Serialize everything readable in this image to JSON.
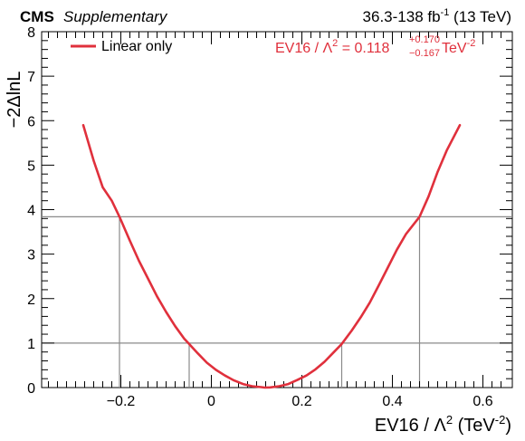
{
  "header": {
    "experiment": "CMS",
    "label": "Supplementary",
    "lumi": "36.3-138 fb",
    "lumi_sup": "-1",
    "energy": " (13 TeV)"
  },
  "colors": {
    "curve": "#e0303c",
    "threshold_lines": "#8a8a8a",
    "axes": "#000000"
  },
  "chart_data": {
    "type": "line",
    "xlabel_main": "EV16 / Λ",
    "xlabel_sup": "2",
    "xlabel_unit": " (TeV",
    "xlabel_unit_sup": "-2",
    "xlabel_close": ")",
    "ylabel": "−2ΔlnL",
    "xlim": [
      -0.375,
      0.665
    ],
    "ylim": [
      0,
      8
    ],
    "xticks": [
      -0.2,
      0,
      0.2,
      0.4,
      0.6
    ],
    "xtick_labels": [
      "−0.2",
      "0",
      "0.2",
      "0.4",
      "0.6"
    ],
    "yticks": [
      0,
      1,
      2,
      3,
      4,
      5,
      6,
      7,
      8
    ],
    "ytick_labels": [
      "0",
      "1",
      "2",
      "3",
      "4",
      "5",
      "6",
      "7",
      "8"
    ],
    "legend": {
      "placement": "top-left",
      "entries": [
        {
          "label": "Linear only"
        }
      ]
    },
    "result": {
      "prefix": "EV16 / Λ",
      "prefix_sup": "2",
      "equals": " = 0.118",
      "up": "+0.170",
      "down": "−0.167",
      "unit": " TeV",
      "unit_sup": "-2"
    },
    "thresholds": [
      {
        "y": 1.0,
        "x_low": -0.049,
        "x_high": 0.288
      },
      {
        "y": 3.84,
        "x_low": -0.203,
        "x_high": 0.46
      }
    ],
    "series": [
      {
        "name": "Linear only",
        "x": [
          -0.283,
          -0.26,
          -0.24,
          -0.22,
          -0.203,
          -0.18,
          -0.16,
          -0.14,
          -0.12,
          -0.1,
          -0.08,
          -0.06,
          -0.049,
          -0.03,
          -0.01,
          0.01,
          0.03,
          0.05,
          0.07,
          0.09,
          0.11,
          0.118,
          0.13,
          0.15,
          0.17,
          0.19,
          0.21,
          0.23,
          0.25,
          0.27,
          0.288,
          0.31,
          0.33,
          0.35,
          0.37,
          0.39,
          0.41,
          0.43,
          0.46,
          0.48,
          0.5,
          0.52,
          0.549
        ],
        "y": [
          5.9,
          5.1,
          4.5,
          4.2,
          3.84,
          3.3,
          2.85,
          2.45,
          2.05,
          1.7,
          1.38,
          1.1,
          0.98,
          0.77,
          0.56,
          0.4,
          0.27,
          0.16,
          0.08,
          0.03,
          0.01,
          0.0,
          0.005,
          0.03,
          0.08,
          0.17,
          0.27,
          0.41,
          0.58,
          0.79,
          0.98,
          1.28,
          1.58,
          1.91,
          2.3,
          2.7,
          3.1,
          3.45,
          3.84,
          4.3,
          4.85,
          5.33,
          5.9
        ]
      }
    ]
  }
}
